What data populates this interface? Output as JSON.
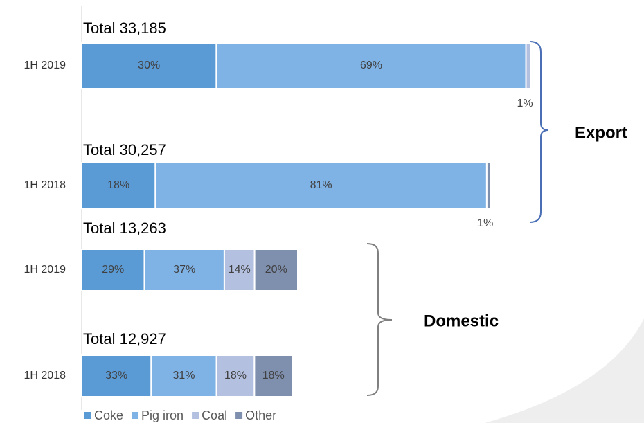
{
  "chart_data": [
    {
      "type": "bar",
      "orientation": "horizontal",
      "stacked": true,
      "group_label": "Export",
      "legend": false,
      "categories": [
        "1H 2019",
        "1H 2018"
      ],
      "totals": [
        {
          "value": 33185,
          "label": "Total 33,185"
        },
        {
          "value": 30257,
          "label": "Total 30,257"
        }
      ],
      "series": [
        {
          "name": "Coke",
          "color": "#5b9bd5",
          "values": [
            30,
            18
          ],
          "value_labels": [
            "30%",
            "18%"
          ]
        },
        {
          "name": "Pig iron",
          "color": "#7fb2e5",
          "values": [
            69,
            81
          ],
          "value_labels": [
            "69%",
            "81%"
          ]
        },
        {
          "name": "Coal",
          "color": "#b4c0e0",
          "values": [
            1,
            null
          ],
          "value_labels": [
            "1%",
            null
          ]
        },
        {
          "name": "Other",
          "color": "#7f8fae",
          "values": [
            null,
            1
          ],
          "value_labels": [
            null,
            "1%"
          ]
        }
      ]
    },
    {
      "type": "bar",
      "orientation": "horizontal",
      "stacked": true,
      "group_label": "Domestic",
      "legend": "bottom-left",
      "categories": [
        "1H 2019",
        "1H 2018"
      ],
      "totals": [
        {
          "value": 13263,
          "label": "Total 13,263"
        },
        {
          "value": 12927,
          "label": "Total 12,927"
        }
      ],
      "series": [
        {
          "name": "Coke",
          "color": "#5b9bd5",
          "values": [
            29,
            33
          ],
          "value_labels": [
            "29%",
            "33%"
          ]
        },
        {
          "name": "Pig iron",
          "color": "#7fb2e5",
          "values": [
            37,
            31
          ],
          "value_labels": [
            "37%",
            "31%"
          ]
        },
        {
          "name": "Coal",
          "color": "#b4c0e0",
          "values": [
            14,
            18
          ],
          "value_labels": [
            "14%",
            "18%"
          ]
        },
        {
          "name": "Other",
          "color": "#7f8fae",
          "values": [
            20,
            18
          ],
          "value_labels": [
            "20%",
            "18%"
          ]
        }
      ]
    }
  ]
}
